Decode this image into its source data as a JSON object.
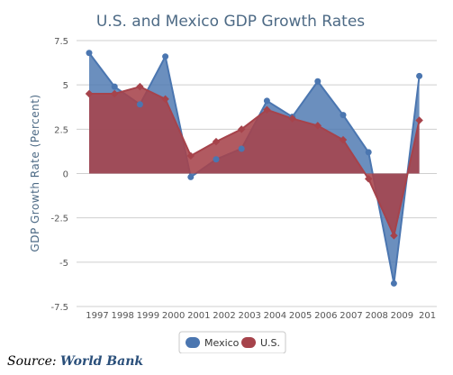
{
  "chart_data": {
    "type": "area",
    "title": "U.S. and Mexico GDP Growth Rates",
    "ylabel": "GDP Growth Rate (Percent)",
    "xlabel": "",
    "categories": [
      "1997",
      "1998",
      "1999",
      "2000",
      "2001",
      "2002",
      "2003",
      "2004",
      "2005",
      "2006",
      "2007",
      "2008",
      "2009",
      "201"
    ],
    "ylim": [
      -7.5,
      7.5
    ],
    "yticks": [
      "7.5",
      "5",
      "2.5",
      "0",
      "-2.5",
      "-5",
      "-7.5"
    ],
    "ytick_values": [
      7.5,
      5,
      2.5,
      0,
      -2.5,
      -5,
      -7.5
    ],
    "grid": true,
    "legend": "bottom-center",
    "series": [
      {
        "name": "Mexico",
        "color": "#4b76b0",
        "values": [
          6.8,
          4.9,
          3.9,
          6.6,
          -0.2,
          0.8,
          1.4,
          4.1,
          3.2,
          5.2,
          3.3,
          1.2,
          -6.2,
          5.5
        ]
      },
      {
        "name": "U.S.",
        "color": "#a6434b",
        "values": [
          4.5,
          4.5,
          4.9,
          4.2,
          1.0,
          1.8,
          2.5,
          3.6,
          3.1,
          2.7,
          1.9,
          -0.3,
          -3.5,
          3.0
        ]
      }
    ]
  },
  "source": {
    "prefix": "Source:",
    "name": "World Bank"
  }
}
